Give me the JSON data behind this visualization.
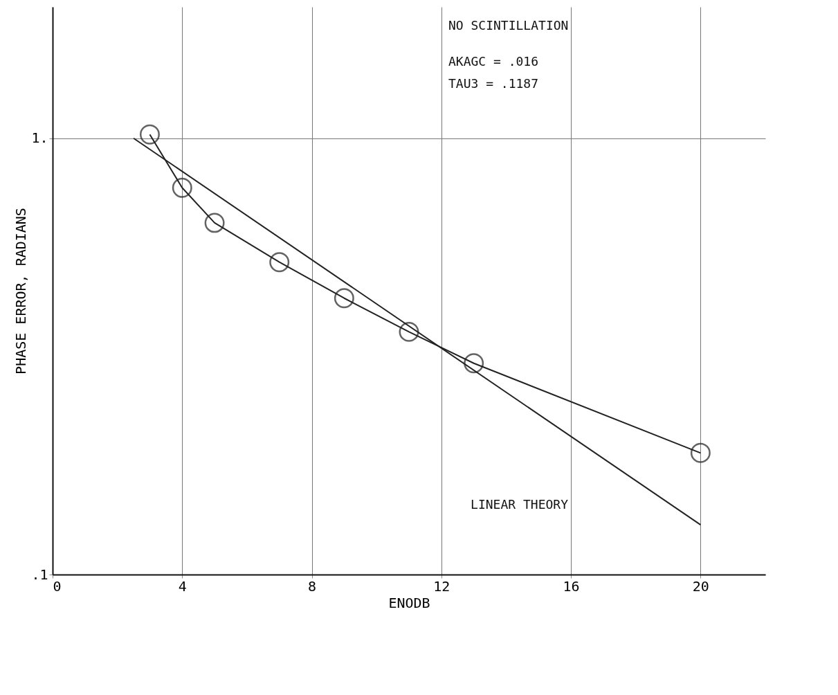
{
  "chart_data": {
    "type": "line",
    "xlabel": "ENODB",
    "ylabel": "PHASE ERROR, RADIANS",
    "log": "y",
    "grid": true,
    "xlim": [
      0,
      22
    ],
    "xticks": [
      0,
      4,
      8,
      12,
      16,
      20
    ],
    "ylim": [
      0.1,
      2
    ],
    "yticks": [
      {
        "value": 0.1,
        "label": ".1"
      },
      {
        "value": 1,
        "label": "1."
      }
    ],
    "series": [
      {
        "type": "line",
        "color": "#222222",
        "marker": "circle",
        "x": [
          3,
          4,
          5,
          7,
          9,
          11,
          13,
          20
        ],
        "values": [
          1.02,
          0.77,
          0.64,
          0.52,
          0.43,
          0.36,
          0.305,
          0.19
        ]
      },
      {
        "type": "line",
        "color": "#222222",
        "marker": "none",
        "x": [
          2.5,
          20
        ],
        "values": [
          1.0,
          0.13
        ]
      }
    ],
    "annotations": [
      "NO SCINTILLATION",
      "AKAGC = .016",
      "TAU3 = .1187",
      "LINEAR THEORY"
    ]
  }
}
